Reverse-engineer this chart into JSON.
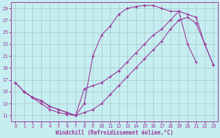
{
  "xlabel": "Windchill (Refroidissement éolien,°C)",
  "xlim": [
    -0.5,
    23.5
  ],
  "ylim": [
    10.0,
    30.0
  ],
  "yticks": [
    11,
    13,
    15,
    17,
    19,
    21,
    23,
    25,
    27,
    29
  ],
  "xticks": [
    0,
    1,
    2,
    3,
    4,
    5,
    6,
    7,
    8,
    9,
    10,
    11,
    12,
    13,
    14,
    15,
    16,
    17,
    18,
    19,
    20,
    21,
    22,
    23
  ],
  "bg_color": "#c6edf0",
  "grid_color": "#a0c8cc",
  "line_color": "#993399",
  "line1_x": [
    0,
    1,
    2,
    3,
    4,
    5,
    6,
    7,
    8,
    9,
    10,
    11,
    12,
    13,
    14,
    15,
    16,
    17,
    18,
    19,
    20,
    21
  ],
  "line1_y": [
    16.5,
    15.0,
    14.0,
    13.0,
    12.0,
    11.5,
    11.2,
    11.0,
    13.0,
    21.0,
    24.5,
    26.0,
    28.0,
    29.0,
    29.3,
    29.5,
    29.5,
    29.0,
    28.5,
    28.5,
    23.0,
    20.0
  ],
  "line2_x": [
    0,
    1,
    2,
    3,
    4,
    5,
    6,
    7,
    8,
    9,
    10,
    11,
    12,
    13,
    14,
    15,
    16,
    17,
    18,
    19,
    20,
    21,
    22,
    23
  ],
  "line2_y": [
    16.5,
    15.0,
    14.0,
    13.5,
    12.5,
    12.0,
    11.5,
    11.0,
    11.5,
    12.0,
    13.0,
    14.5,
    16.0,
    17.5,
    19.0,
    20.5,
    22.0,
    23.5,
    25.5,
    27.0,
    27.5,
    26.5,
    23.0,
    19.5
  ],
  "line3_x": [
    1,
    2,
    3,
    4,
    5,
    6,
    7,
    8,
    9,
    10,
    11,
    12,
    13,
    14,
    15,
    16,
    17,
    18,
    19,
    20,
    21,
    22,
    23
  ],
  "line3_y": [
    15.0,
    14.0,
    13.5,
    12.5,
    12.0,
    11.5,
    11.0,
    15.5,
    16.0,
    16.5,
    17.5,
    18.5,
    20.0,
    21.5,
    23.0,
    24.5,
    25.5,
    27.0,
    28.5,
    28.0,
    27.5,
    23.0,
    19.5
  ]
}
